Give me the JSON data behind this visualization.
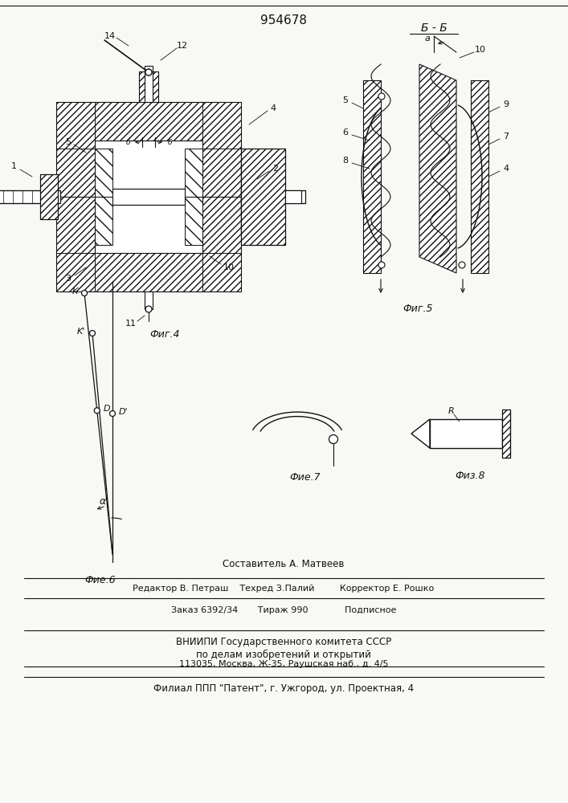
{
  "patent_number": "954678",
  "background_color": "#f8f8f5",
  "line_color": "#111111",
  "fig4_caption": "Фиг.4",
  "fig5_caption": "Фиг.5",
  "fig6_caption": "Фие.6",
  "fig7_caption": "Фие.7",
  "fig8_caption": "Физ.8",
  "footer_line1": "Составитель А. Матвеев",
  "footer_line2": "Редактор В. Петраш    Техред З.Палий         Корректор Е. Рошко",
  "footer_line3": "Заказ 6392/34       Тираж 990             Подписное",
  "footer_line4": "ВНИИПИ Государственного комитета СССР",
  "footer_line5": "по делам изобретений и открытий",
  "footer_line6": "113035, Москва, Ж-35, Раушская наб., д. 4/5",
  "footer_line7": "Филиал ППП \"Патент\", г. Ужгород, ул. Проектная, 4"
}
